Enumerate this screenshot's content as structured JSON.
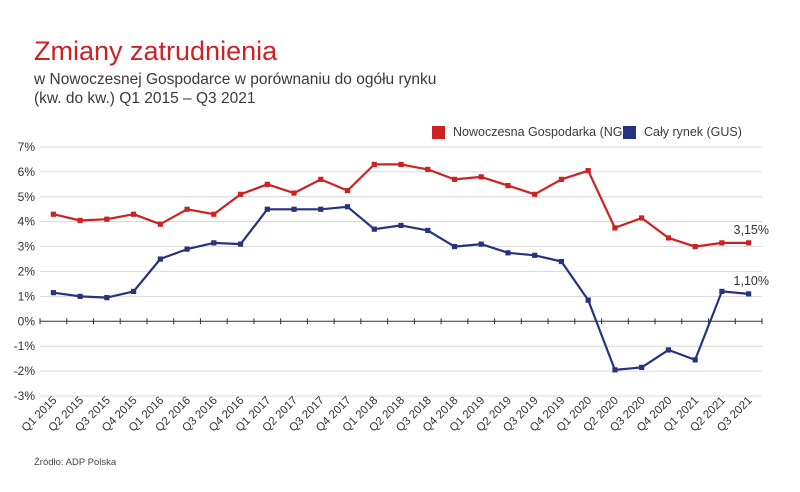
{
  "header": {
    "title": "Zmiany zatrudnienia",
    "subtitle_line1": "w Nowoczesnej Gospodarce w porównaniu do ogółu rynku",
    "subtitle_line2": "(kw. do kw.) Q1 2015 – Q3 2021"
  },
  "legend": {
    "ng_label": "Nowoczesna Gospodarka (NG)",
    "gus_label": "Cały rynek (GUS)"
  },
  "source": "Źródło: ADP Polska",
  "colors": {
    "ng": "#cc2222",
    "gus": "#26347f",
    "grid": "#cfcfcf",
    "axis": "#333333"
  },
  "chart_data": {
    "type": "line",
    "categories": [
      "Q1 2015",
      "Q2 2015",
      "Q3 2015",
      "Q4 2015",
      "Q1 2016",
      "Q2 2016",
      "Q3 2016",
      "Q4 2016",
      "Q1 2017",
      "Q2 2017",
      "Q3 2017",
      "Q4 2017",
      "Q1 2018",
      "Q2 2018",
      "Q3 2018",
      "Q4 2018",
      "Q1 2019",
      "Q2 2019",
      "Q3 2019",
      "Q4 2019",
      "Q1 2020",
      "Q2 2020",
      "Q3 2020",
      "Q4 2020",
      "Q1 2021",
      "Q2 2021",
      "Q3 2021"
    ],
    "series": [
      {
        "name": "Nowoczesna Gospodarka (NG)",
        "color": "#cc2222",
        "values": [
          4.3,
          4.05,
          4.1,
          4.3,
          3.9,
          4.5,
          4.3,
          5.1,
          5.5,
          5.15,
          5.7,
          5.25,
          6.3,
          6.3,
          6.1,
          5.7,
          5.8,
          5.45,
          5.1,
          5.7,
          6.05,
          3.75,
          4.15,
          3.35,
          3.0,
          3.15,
          3.15
        ]
      },
      {
        "name": "Cały rynek (GUS)",
        "color": "#26347f",
        "values": [
          1.15,
          1.0,
          0.95,
          1.2,
          2.5,
          2.9,
          3.15,
          3.1,
          4.5,
          4.5,
          4.5,
          4.6,
          3.7,
          3.85,
          3.65,
          3.0,
          3.1,
          2.75,
          2.65,
          2.4,
          0.85,
          -1.95,
          -1.85,
          -1.15,
          -1.55,
          1.2,
          1.1
        ]
      }
    ],
    "annotations": [
      "3,15%",
      "1,10%"
    ],
    "y_ticks": [
      "-3%",
      "-2%",
      "-1%",
      "0%",
      "1%",
      "2%",
      "3%",
      "4%",
      "5%",
      "6%",
      "7%"
    ],
    "ylim": [
      -3,
      7
    ],
    "grid": true,
    "legend_position": "top-right"
  }
}
